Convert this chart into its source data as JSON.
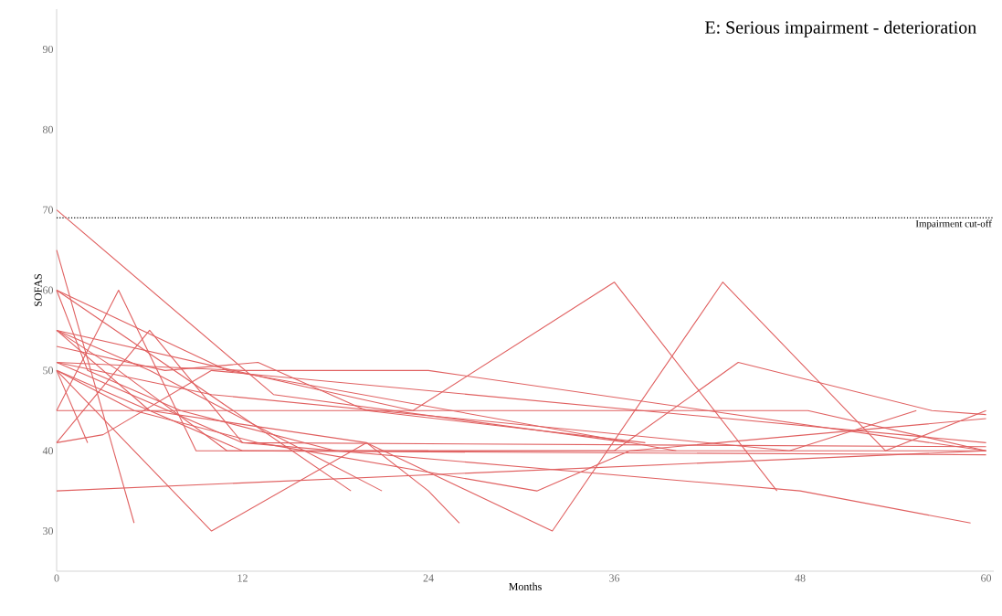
{
  "chart_data": {
    "type": "line",
    "title": "E: Serious impairment - deterioration",
    "xlabel": "Months",
    "ylabel": "SOFAS",
    "xlim": [
      0,
      60.5
    ],
    "ylim": [
      25,
      95
    ],
    "xticks": [
      0,
      12,
      24,
      36,
      48,
      60
    ],
    "yticks": [
      30,
      40,
      50,
      60,
      70,
      80,
      90
    ],
    "ref_lines": [
      {
        "axis": "y",
        "value": 69,
        "label": "Impairment cut-off",
        "color": "#000000",
        "line_style": "dotted"
      }
    ],
    "series": [
      {
        "color": "#e06060",
        "x": [
          0,
          10,
          20,
          32,
          43,
          53.5,
          60
        ],
        "values": [
          50,
          30,
          41,
          30,
          61,
          40,
          45
        ]
      },
      {
        "color": "#e06060",
        "x": [
          0,
          14,
          37
        ],
        "values": [
          70,
          47,
          41
        ]
      },
      {
        "color": "#e06060",
        "x": [
          0,
          5
        ],
        "values": [
          65,
          31
        ]
      },
      {
        "color": "#e06060",
        "x": [
          0,
          4,
          9,
          60
        ],
        "values": [
          45,
          60,
          40,
          40
        ]
      },
      {
        "color": "#e06060",
        "x": [
          0,
          60
        ],
        "values": [
          35,
          40
        ]
      },
      {
        "color": "#e06060",
        "x": [
          0,
          12,
          48,
          59
        ],
        "values": [
          51,
          41,
          35,
          31
        ]
      },
      {
        "color": "#e06060",
        "x": [
          0,
          6,
          20,
          24,
          26
        ],
        "values": [
          55,
          45,
          41,
          35,
          31
        ]
      },
      {
        "color": "#e06060",
        "x": [
          0,
          19
        ],
        "values": [
          60,
          35
        ]
      },
      {
        "color": "#e06060",
        "x": [
          0,
          6,
          21
        ],
        "values": [
          55,
          50,
          35
        ]
      },
      {
        "color": "#e06060",
        "x": [
          0,
          12,
          24,
          60
        ],
        "values": [
          51,
          50,
          50,
          40
        ]
      },
      {
        "color": "#e06060",
        "x": [
          0,
          16,
          23,
          36,
          46.5
        ],
        "values": [
          55,
          48,
          45,
          61,
          35
        ]
      },
      {
        "color": "#e06060",
        "x": [
          0,
          12,
          36,
          44,
          56.5,
          60
        ],
        "values": [
          50,
          40,
          40,
          51,
          45,
          44.5
        ]
      },
      {
        "color": "#e06060",
        "x": [
          0,
          28,
          48.5,
          60
        ],
        "values": [
          45,
          45,
          45,
          40
        ]
      },
      {
        "color": "#e06060",
        "x": [
          0,
          10,
          47.3,
          55.5
        ],
        "values": [
          51,
          47,
          40,
          45
        ]
      },
      {
        "color": "#e06060",
        "x": [
          0,
          2
        ],
        "values": [
          50,
          41
        ]
      },
      {
        "color": "#e06060",
        "x": [
          0,
          3,
          10,
          60
        ],
        "values": [
          41,
          42,
          50,
          41
        ]
      },
      {
        "color": "#e06060",
        "x": [
          0,
          6,
          12,
          60
        ],
        "values": [
          41,
          55,
          41,
          40.5
        ]
      },
      {
        "color": "#e06060",
        "x": [
          0,
          2,
          8,
          18,
          24
        ],
        "values": [
          60,
          50,
          45,
          40,
          40
        ]
      },
      {
        "color": "#e06060",
        "x": [
          0,
          7,
          13,
          20,
          38
        ],
        "values": [
          53,
          50,
          51,
          45,
          41
        ]
      },
      {
        "color": "#e06060",
        "x": [
          0,
          5,
          13,
          31,
          37,
          60
        ],
        "values": [
          50,
          45,
          41,
          35,
          40,
          44
        ]
      },
      {
        "color": "#e06060",
        "x": [
          0,
          11,
          40
        ],
        "values": [
          60,
          50,
          40
        ]
      },
      {
        "color": "#e06060",
        "x": [
          0,
          4,
          11,
          60
        ],
        "values": [
          55,
          50,
          40,
          39.5
        ]
      }
    ]
  }
}
